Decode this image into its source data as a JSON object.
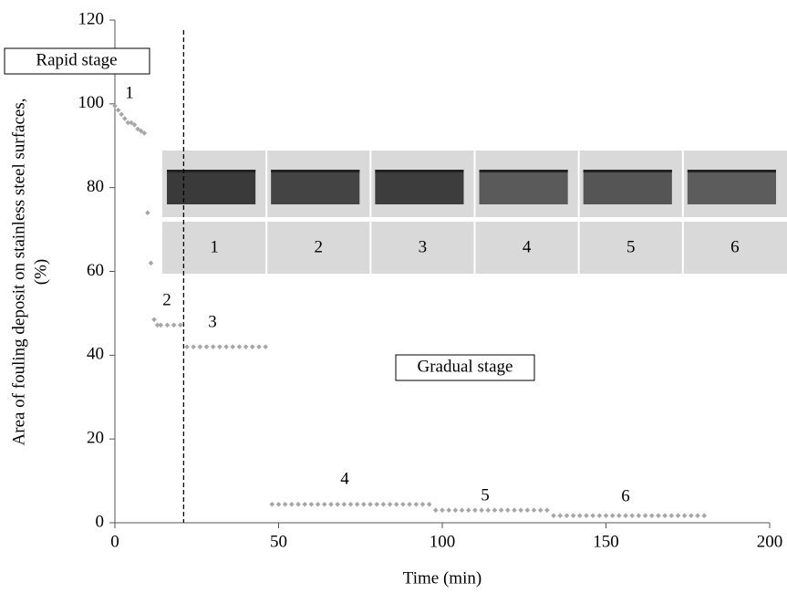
{
  "chart_data": {
    "type": "scatter",
    "x_label": "Time (min)",
    "y_label": [
      "Area of fouling deposit on stainless steel surfaces,",
      "(%)"
    ],
    "xlim": [
      0,
      200
    ],
    "xticks": [
      0,
      50,
      100,
      150,
      200
    ],
    "ylim": [
      0,
      120
    ],
    "yticks": [
      0,
      20,
      40,
      60,
      80,
      100,
      120
    ],
    "color": "#a6a6a6",
    "stage_boundary_x": 21,
    "annotations": [
      "1",
      "2",
      "3",
      "4",
      "5",
      "6",
      "Rapid stage",
      "Gradual stage"
    ],
    "inset_labels": [
      "1",
      "2",
      "3",
      "4",
      "5",
      "6"
    ],
    "x": [
      0,
      1,
      2,
      3,
      4,
      5,
      6,
      7,
      8,
      9,
      10,
      11,
      12,
      13,
      14,
      16,
      18,
      20,
      22,
      24,
      26,
      28,
      30,
      32,
      34,
      36,
      38,
      40,
      42,
      44,
      46,
      48,
      50,
      52,
      54,
      56,
      58,
      60,
      62,
      64,
      66,
      68,
      70,
      72,
      74,
      76,
      78,
      80,
      82,
      84,
      86,
      88,
      90,
      92,
      94,
      96,
      98,
      100,
      102,
      104,
      106,
      108,
      110,
      112,
      114,
      116,
      118,
      120,
      122,
      124,
      126,
      128,
      130,
      132,
      134,
      136,
      138,
      140,
      142,
      144,
      146,
      148,
      150,
      152,
      154,
      156,
      158,
      160,
      162,
      164,
      166,
      168,
      170,
      172,
      174,
      176,
      178,
      180
    ],
    "values": [
      99.5,
      98.5,
      97.5,
      96.5,
      95.5,
      95.5,
      95,
      94,
      93.5,
      93,
      74,
      62,
      48.5,
      47.2,
      47.2,
      47.2,
      47.2,
      47.2,
      42,
      42,
      42,
      42,
      42,
      42,
      42,
      42,
      42,
      42,
      42,
      42,
      42,
      4.4,
      4.4,
      4.4,
      4.4,
      4.4,
      4.4,
      4.4,
      4.4,
      4.4,
      4.4,
      4.4,
      4.4,
      4.4,
      4.4,
      4.4,
      4.4,
      4.4,
      4.4,
      4.4,
      4.4,
      4.4,
      4.4,
      4.4,
      4.4,
      4.4,
      3,
      3,
      3,
      3,
      3,
      3,
      3,
      3,
      3,
      3,
      3,
      3,
      3,
      3,
      3,
      3,
      3,
      3,
      1.7,
      1.7,
      1.7,
      1.7,
      1.7,
      1.7,
      1.7,
      1.7,
      1.7,
      1.7,
      1.7,
      1.7,
      1.7,
      1.7,
      1.7,
      1.7,
      1.7,
      1.7,
      1.7,
      1.7,
      1.7,
      1.7,
      1.7,
      1.7
    ]
  }
}
